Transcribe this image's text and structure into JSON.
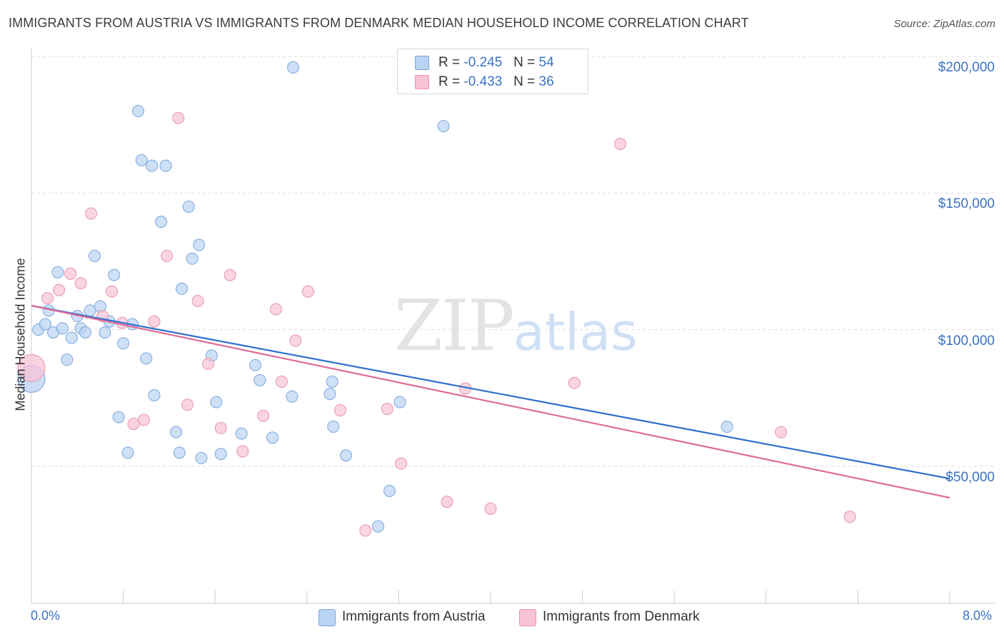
{
  "title": "IMMIGRANTS FROM AUSTRIA VS IMMIGRANTS FROM DENMARK MEDIAN HOUSEHOLD INCOME CORRELATION CHART",
  "source": "Source: ZipAtlas.com",
  "watermark": {
    "zip": "ZIP",
    "atlas": "atlas"
  },
  "stats": [
    {
      "r_label": "R =",
      "r_value": "-0.245",
      "n_label": "N =",
      "n_value": "54"
    },
    {
      "r_label": "R =",
      "r_value": "-0.433",
      "n_label": "N =",
      "n_value": "36"
    }
  ],
  "legend": [
    {
      "label": "Immigrants from Austria"
    },
    {
      "label": "Immigrants from Denmark"
    }
  ],
  "colors": {
    "austria_fill": "#b9d3f2",
    "austria_stroke": "#7aa6dd",
    "austria_line": "#2f6fcc",
    "denmark_fill": "#f8c3d4",
    "denmark_stroke": "#e892ae",
    "denmark_line": "#e06b95",
    "axis_text": "#3a72c4",
    "grid": "#dddddd"
  },
  "chart_data": {
    "type": "scatter",
    "title": "IMMIGRANTS FROM AUSTRIA VS IMMIGRANTS FROM DENMARK MEDIAN HOUSEHOLD INCOME CORRELATION CHART",
    "xlabel": "",
    "ylabel": "Median Household Income",
    "xlim": [
      0,
      8.0
    ],
    "ylim": [
      5000,
      210000
    ],
    "x_tick_labels": [
      "0.0%",
      "8.0%"
    ],
    "y_ticks": [
      50000,
      100000,
      150000,
      200000
    ],
    "y_tick_labels": [
      "$50,000",
      "$100,000",
      "$150,000",
      "$200,000"
    ],
    "grid": true,
    "legend_position": "bottom",
    "series": [
      {
        "name": "Immigrants from Austria",
        "trend": {
          "x": [
            0.0,
            8.0
          ],
          "y": [
            108800,
            45500
          ]
        },
        "points": [
          {
            "x": 0.0,
            "y": 82000,
            "big": true
          },
          {
            "x": 0.06,
            "y": 100000
          },
          {
            "x": 0.12,
            "y": 102000
          },
          {
            "x": 0.15,
            "y": 107000
          },
          {
            "x": 0.19,
            "y": 99000
          },
          {
            "x": 0.23,
            "y": 121000
          },
          {
            "x": 0.27,
            "y": 100500
          },
          {
            "x": 0.31,
            "y": 89000
          },
          {
            "x": 0.35,
            "y": 97000
          },
          {
            "x": 0.4,
            "y": 105000
          },
          {
            "x": 0.43,
            "y": 100500
          },
          {
            "x": 0.47,
            "y": 99000
          },
          {
            "x": 0.51,
            "y": 107000
          },
          {
            "x": 0.55,
            "y": 127000
          },
          {
            "x": 0.6,
            "y": 108500
          },
          {
            "x": 0.64,
            "y": 99000
          },
          {
            "x": 0.68,
            "y": 103000
          },
          {
            "x": 0.72,
            "y": 120000
          },
          {
            "x": 0.76,
            "y": 68000
          },
          {
            "x": 0.8,
            "y": 95000
          },
          {
            "x": 0.84,
            "y": 55000
          },
          {
            "x": 0.88,
            "y": 102000
          },
          {
            "x": 0.93,
            "y": 180000
          },
          {
            "x": 0.96,
            "y": 162000
          },
          {
            "x": 1.0,
            "y": 89500
          },
          {
            "x": 1.05,
            "y": 160000
          },
          {
            "x": 1.07,
            "y": 76000
          },
          {
            "x": 1.13,
            "y": 139500
          },
          {
            "x": 1.17,
            "y": 160000
          },
          {
            "x": 1.26,
            "y": 62500
          },
          {
            "x": 1.29,
            "y": 55000
          },
          {
            "x": 1.31,
            "y": 115000
          },
          {
            "x": 1.37,
            "y": 145000
          },
          {
            "x": 1.4,
            "y": 126000
          },
          {
            "x": 1.46,
            "y": 131000
          },
          {
            "x": 1.48,
            "y": 53000
          },
          {
            "x": 1.57,
            "y": 90500
          },
          {
            "x": 1.61,
            "y": 73500
          },
          {
            "x": 1.65,
            "y": 54500
          },
          {
            "x": 1.83,
            "y": 62000
          },
          {
            "x": 1.95,
            "y": 87000
          },
          {
            "x": 1.99,
            "y": 81500
          },
          {
            "x": 2.1,
            "y": 60500
          },
          {
            "x": 2.27,
            "y": 75500
          },
          {
            "x": 2.28,
            "y": 196000
          },
          {
            "x": 2.6,
            "y": 76500
          },
          {
            "x": 2.62,
            "y": 81000
          },
          {
            "x": 2.63,
            "y": 64500
          },
          {
            "x": 2.74,
            "y": 54000
          },
          {
            "x": 3.02,
            "y": 28000
          },
          {
            "x": 3.12,
            "y": 41000
          },
          {
            "x": 3.21,
            "y": 73500
          },
          {
            "x": 3.59,
            "y": 174500
          },
          {
            "x": 6.06,
            "y": 64500
          }
        ]
      },
      {
        "name": "Immigrants from Denmark",
        "trend": {
          "x": [
            0.0,
            8.0
          ],
          "y": [
            108800,
            38500
          ]
        },
        "points": [
          {
            "x": 0.0,
            "y": 86000,
            "big": true
          },
          {
            "x": 0.14,
            "y": 111500
          },
          {
            "x": 0.24,
            "y": 114500
          },
          {
            "x": 0.34,
            "y": 120500
          },
          {
            "x": 0.43,
            "y": 117000
          },
          {
            "x": 0.52,
            "y": 142500
          },
          {
            "x": 0.62,
            "y": 105000
          },
          {
            "x": 0.7,
            "y": 114000
          },
          {
            "x": 0.79,
            "y": 102500
          },
          {
            "x": 0.89,
            "y": 65500
          },
          {
            "x": 0.98,
            "y": 67000
          },
          {
            "x": 1.07,
            "y": 103000
          },
          {
            "x": 1.18,
            "y": 127000
          },
          {
            "x": 1.28,
            "y": 177500
          },
          {
            "x": 1.36,
            "y": 72500
          },
          {
            "x": 1.45,
            "y": 110500
          },
          {
            "x": 1.54,
            "y": 87500
          },
          {
            "x": 1.65,
            "y": 64000
          },
          {
            "x": 1.73,
            "y": 120000
          },
          {
            "x": 1.84,
            "y": 55500
          },
          {
            "x": 2.02,
            "y": 68500
          },
          {
            "x": 2.13,
            "y": 107500
          },
          {
            "x": 2.18,
            "y": 81000
          },
          {
            "x": 2.3,
            "y": 96000
          },
          {
            "x": 2.41,
            "y": 114000
          },
          {
            "x": 2.69,
            "y": 70500
          },
          {
            "x": 2.91,
            "y": 26500
          },
          {
            "x": 3.1,
            "y": 71000
          },
          {
            "x": 3.22,
            "y": 51000
          },
          {
            "x": 3.62,
            "y": 37000
          },
          {
            "x": 3.78,
            "y": 78500
          },
          {
            "x": 4.0,
            "y": 34500
          },
          {
            "x": 4.73,
            "y": 80500
          },
          {
            "x": 5.13,
            "y": 168000
          },
          {
            "x": 6.53,
            "y": 62500
          },
          {
            "x": 7.13,
            "y": 31500
          }
        ]
      }
    ]
  }
}
